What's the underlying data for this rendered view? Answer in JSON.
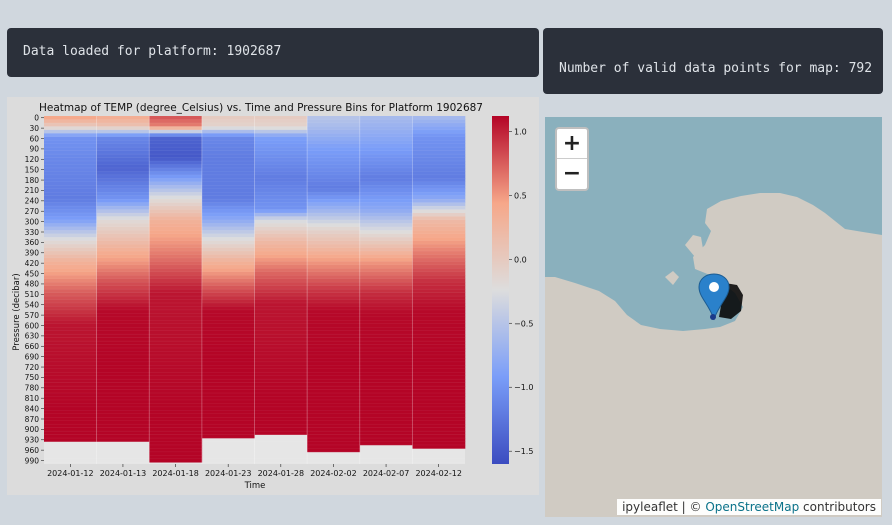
{
  "status": {
    "loaded_text": "Data loaded for platform: 1902687",
    "count_text": "Number of valid data points for map: 792"
  },
  "chart_data": {
    "type": "heatmap",
    "title": "Heatmap of TEMP (degree_Celsius) vs. Time and Pressure Bins for Platform 1902687",
    "xlabel": "Time",
    "ylabel": "Pressure (decibar)",
    "x": [
      "2024-01-12",
      "2024-01-13",
      "2024-01-18",
      "2024-01-23",
      "2024-01-28",
      "2024-02-02",
      "2024-02-07",
      "2024-02-12"
    ],
    "y_ticks": [
      "0",
      "30",
      "60",
      "90",
      "120",
      "150",
      "180",
      "210",
      "240",
      "270",
      "300",
      "330",
      "360",
      "390",
      "420",
      "450",
      "480",
      "510",
      "540",
      "570",
      "600",
      "630",
      "660",
      "690",
      "720",
      "750",
      "780",
      "810",
      "840",
      "870",
      "900",
      "930",
      "960",
      "990"
    ],
    "colorbar": {
      "ticks": [
        1.0,
        0.5,
        0.0,
        -0.5,
        -1.0,
        -1.5
      ],
      "tick_labels": [
        "1.0",
        "0.5",
        "0.0",
        "−0.5",
        "−1.0",
        "−1.5"
      ],
      "range": [
        -1.6,
        1.12
      ]
    },
    "colormap": "coolwarm",
    "value_profiles": [
      {
        "time": "2024-01-12",
        "knots": [
          [
            0,
            0.5
          ],
          [
            30,
            0.0
          ],
          [
            60,
            -1.0
          ],
          [
            120,
            -1.1
          ],
          [
            240,
            -1.2
          ],
          [
            300,
            -0.9
          ],
          [
            360,
            -0.2
          ],
          [
            420,
            0.3
          ],
          [
            510,
            0.75
          ],
          [
            600,
            1.05
          ],
          [
            960,
            1.15
          ]
        ],
        "max_pressure": 930
      },
      {
        "time": "2024-01-13",
        "knots": [
          [
            0,
            0.4
          ],
          [
            30,
            0.1
          ],
          [
            60,
            -1.1
          ],
          [
            150,
            -1.4
          ],
          [
            240,
            -1.0
          ],
          [
            300,
            -0.2
          ],
          [
            390,
            0.35
          ],
          [
            480,
            0.8
          ],
          [
            560,
            1.1
          ],
          [
            960,
            1.15
          ]
        ],
        "max_pressure": 930
      },
      {
        "time": "2024-01-18",
        "knots": [
          [
            0,
            0.8
          ],
          [
            30,
            0.6
          ],
          [
            60,
            -1.4
          ],
          [
            120,
            -1.5
          ],
          [
            180,
            -0.9
          ],
          [
            240,
            -0.2
          ],
          [
            300,
            0.3
          ],
          [
            420,
            0.7
          ],
          [
            510,
            1.05
          ],
          [
            990,
            1.15
          ]
        ],
        "max_pressure": 990
      },
      {
        "time": "2024-01-23",
        "knots": [
          [
            0,
            0.0
          ],
          [
            30,
            -0.1
          ],
          [
            60,
            -1.1
          ],
          [
            120,
            -1.2
          ],
          [
            240,
            -1.2
          ],
          [
            300,
            -0.8
          ],
          [
            360,
            -0.2
          ],
          [
            420,
            0.3
          ],
          [
            500,
            0.8
          ],
          [
            560,
            1.1
          ],
          [
            930,
            1.15
          ]
        ],
        "max_pressure": 920
      },
      {
        "time": "2024-01-28",
        "knots": [
          [
            0,
            0.0
          ],
          [
            30,
            -0.1
          ],
          [
            60,
            -0.9
          ],
          [
            180,
            -1.2
          ],
          [
            270,
            -1.0
          ],
          [
            300,
            -0.3
          ],
          [
            360,
            0.2
          ],
          [
            450,
            0.7
          ],
          [
            540,
            1.05
          ],
          [
            930,
            1.15
          ]
        ],
        "max_pressure": 910
      },
      {
        "time": "2024-02-02",
        "knots": [
          [
            0,
            -0.5
          ],
          [
            30,
            -0.6
          ],
          [
            90,
            -0.9
          ],
          [
            210,
            -1.2
          ],
          [
            270,
            -0.7
          ],
          [
            330,
            -0.1
          ],
          [
            420,
            0.5
          ],
          [
            500,
            0.9
          ],
          [
            560,
            1.1
          ],
          [
            960,
            1.15
          ]
        ],
        "max_pressure": 960
      },
      {
        "time": "2024-02-07",
        "knots": [
          [
            0,
            -0.6
          ],
          [
            30,
            -0.7
          ],
          [
            90,
            -0.9
          ],
          [
            180,
            -1.2
          ],
          [
            270,
            -0.8
          ],
          [
            360,
            0.0
          ],
          [
            420,
            0.5
          ],
          [
            510,
            0.95
          ],
          [
            570,
            1.1
          ],
          [
            960,
            1.15
          ]
        ],
        "max_pressure": 945
      },
      {
        "time": "2024-02-12",
        "knots": [
          [
            0,
            -0.6
          ],
          [
            30,
            -0.8
          ],
          [
            60,
            -1.0
          ],
          [
            180,
            -1.2
          ],
          [
            240,
            -0.8
          ],
          [
            300,
            0.2
          ],
          [
            390,
            0.6
          ],
          [
            480,
            0.95
          ],
          [
            560,
            1.1
          ],
          [
            960,
            1.15
          ]
        ],
        "max_pressure": 955
      }
    ]
  },
  "map": {
    "zoom_in_label": "+",
    "zoom_out_label": "−",
    "attribution_prefix": "ipyleaflet | © ",
    "attribution_link": "OpenStreetMap",
    "attribution_suffix": " contributors",
    "marker_icon": "map-pin-icon",
    "colors": {
      "water": "#8ab0bd",
      "land": "#d0cbc3",
      "marker": "#2a81cb"
    }
  }
}
